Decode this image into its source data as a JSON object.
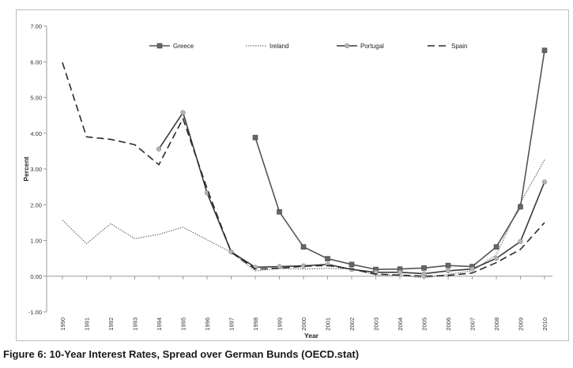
{
  "caption": "Figure 6: 10-Year Interest Rates, Spread over German Bunds (OECD.stat)",
  "chart_data": {
    "type": "line",
    "title": "",
    "xlabel": "Year",
    "ylabel": "Percent",
    "categories": [
      "1990",
      "1991",
      "1992",
      "1993",
      "1994",
      "1995",
      "1996",
      "1997",
      "1998",
      "1999",
      "2000",
      "2001",
      "2002",
      "2003",
      "2004",
      "2005",
      "2006",
      "2007",
      "2008",
      "2009",
      "2010"
    ],
    "ylim": [
      -1,
      7
    ],
    "yticks": [
      "-1.00",
      "0.00",
      "1.00",
      "2.00",
      "3.00",
      "4.00",
      "5.00",
      "6.00",
      "7.00"
    ],
    "grid": false,
    "legend_position": "top",
    "series": [
      {
        "name": "Greece",
        "style": "solid-square",
        "color": "#555555",
        "values": [
          null,
          null,
          null,
          null,
          null,
          null,
          null,
          null,
          3.88,
          1.8,
          0.82,
          0.49,
          0.33,
          0.19,
          0.2,
          0.23,
          0.3,
          0.27,
          0.82,
          1.94,
          6.32
        ]
      },
      {
        "name": "Ireland",
        "style": "dotted",
        "color": "#555555",
        "values": [
          1.57,
          0.91,
          1.47,
          1.05,
          1.17,
          1.37,
          1.02,
          0.67,
          0.15,
          0.22,
          0.2,
          0.22,
          0.2,
          0.03,
          0.03,
          -0.05,
          0.05,
          0.15,
          0.6,
          2.05,
          3.26
        ]
      },
      {
        "name": "Portugal",
        "style": "solid-circle",
        "color": "#3a3a3a",
        "values": [
          null,
          null,
          null,
          null,
          3.56,
          4.58,
          2.33,
          0.68,
          0.25,
          0.27,
          0.29,
          0.33,
          0.19,
          0.11,
          0.11,
          0.07,
          0.15,
          0.2,
          0.5,
          0.97,
          2.64
        ]
      },
      {
        "name": "Spain",
        "style": "dashed",
        "color": "#2a2a2a",
        "values": [
          5.98,
          3.9,
          3.83,
          3.68,
          3.12,
          4.41,
          2.45,
          0.67,
          0.2,
          0.22,
          0.28,
          0.3,
          0.2,
          0.06,
          0.03,
          0.0,
          0.02,
          0.09,
          0.38,
          0.75,
          1.5
        ]
      }
    ]
  }
}
